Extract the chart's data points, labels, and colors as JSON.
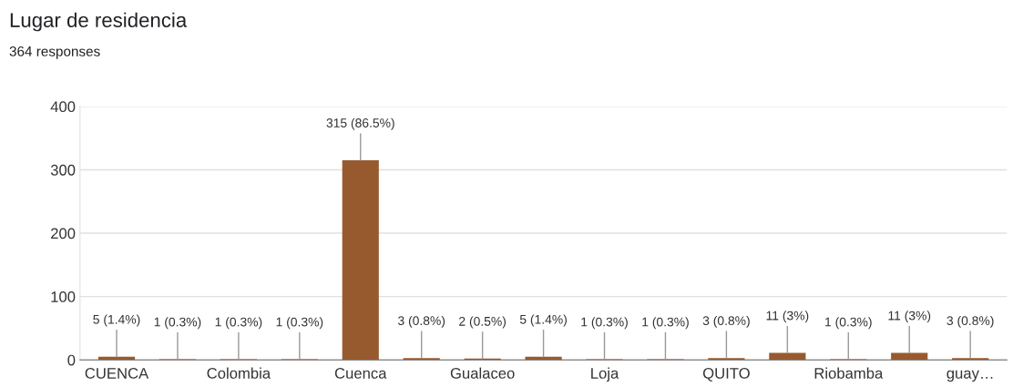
{
  "chart_data": {
    "type": "bar",
    "title": "Lugar de residencia",
    "subtitle": "364 responses",
    "categories": [
      "CUENCA",
      null,
      "Colombia",
      null,
      "Cuenca",
      null,
      "Gualaceo",
      null,
      "Loja",
      null,
      "QUITO",
      null,
      "Riobamba",
      null,
      "guay…"
    ],
    "values": [
      5,
      1,
      1,
      1,
      315,
      3,
      2,
      5,
      1,
      1,
      3,
      11,
      1,
      11,
      3
    ],
    "value_labels": [
      "5 (1.4%)",
      "1 (0.3%)",
      "1 (0.3%)",
      "1 (0.3%)",
      "315 (86.5%)",
      "3 (0.8%)",
      "2 (0.5%)",
      "5 (1.4%)",
      "1 (0.3%)",
      "1 (0.3%)",
      "3 (0.8%)",
      "11 (3%)",
      "1 (0.3%)",
      "11 (3%)",
      "3 (0.8%)"
    ],
    "color": "#975a2f",
    "ylim": [
      0,
      400
    ],
    "yticks": [
      0,
      100,
      200,
      300,
      400
    ],
    "grid": "y",
    "legend": false
  }
}
